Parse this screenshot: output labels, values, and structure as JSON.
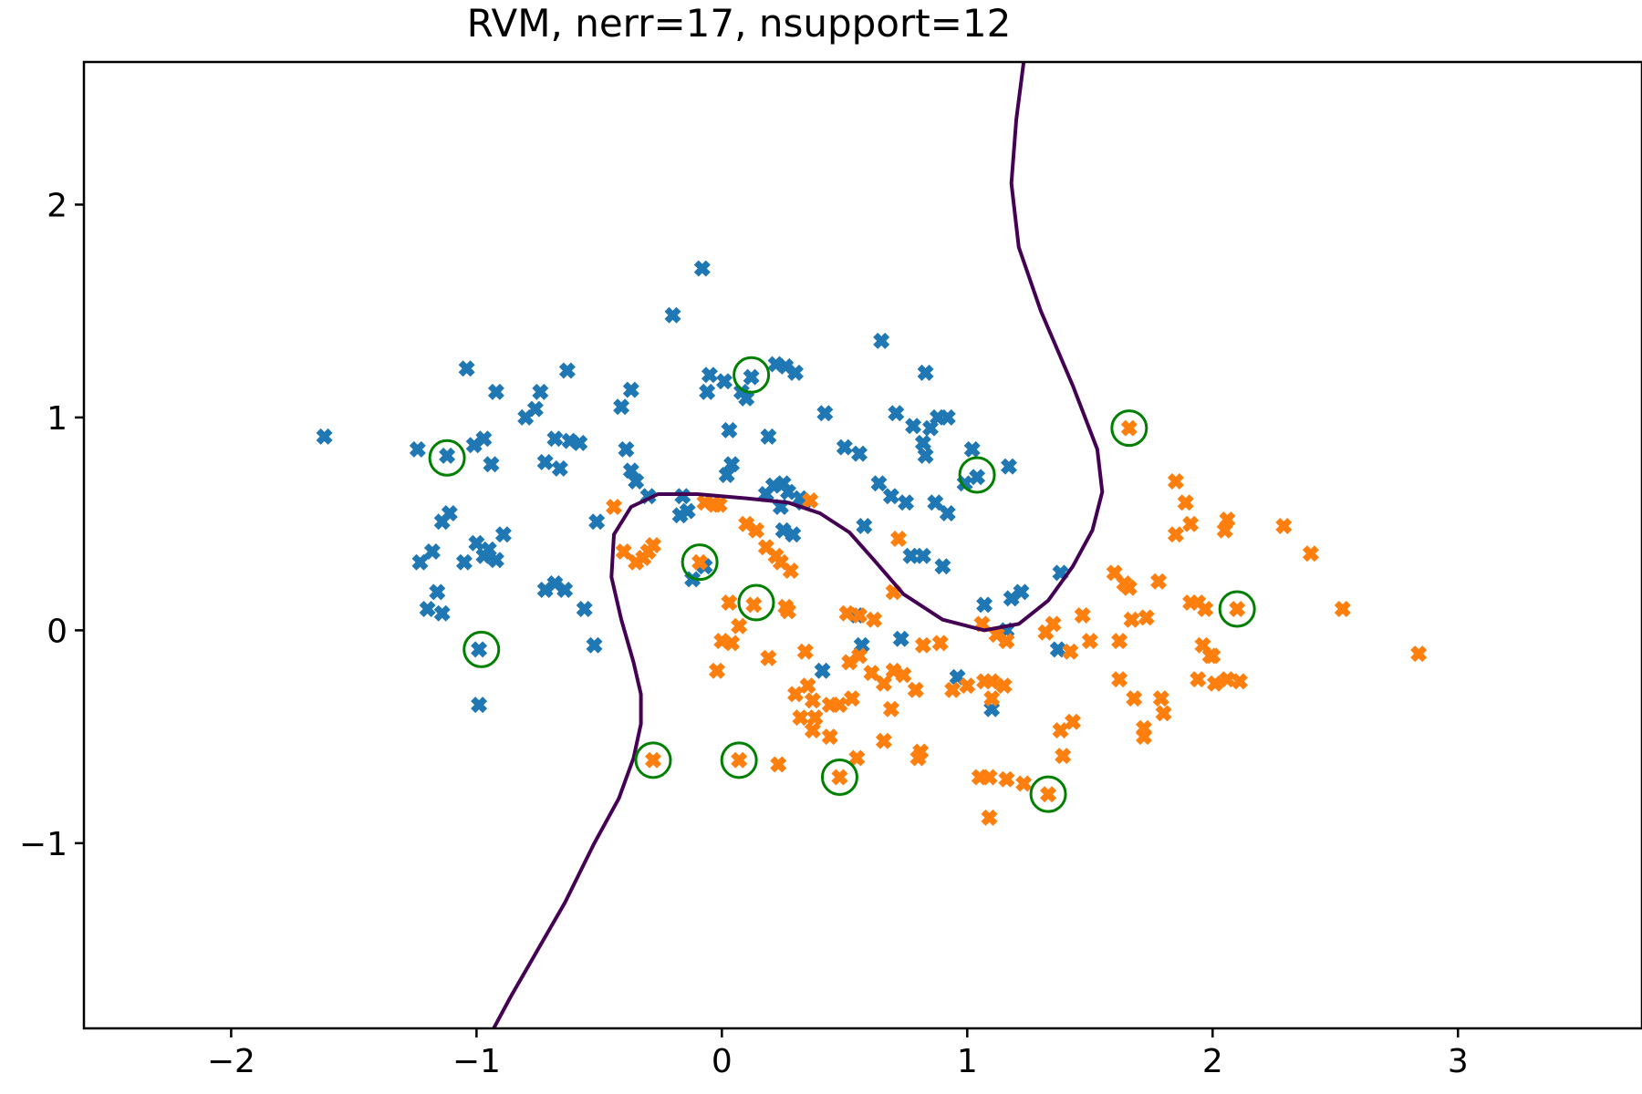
{
  "chart_data": {
    "type": "scatter",
    "title": "RVM, nerr=17, nsupport=12",
    "xlabel": "",
    "ylabel": "",
    "xlim": [
      -2.6,
      3.75
    ],
    "ylim": [
      -1.87,
      2.67
    ],
    "xticks": [
      -2,
      -1,
      0,
      1,
      2,
      3
    ],
    "yticks": [
      -1,
      0,
      1,
      2
    ],
    "xtick_labels": [
      "−2",
      "−1",
      "0",
      "1",
      "2",
      "3"
    ],
    "ytick_labels": [
      "−1",
      "0",
      "1",
      "2"
    ],
    "grid": false,
    "legend": "none",
    "marker": "X",
    "colors": {
      "class0": "#1f77b4",
      "class1": "#ff7f0e",
      "support": "#008000",
      "boundary": "#440154"
    },
    "series": [
      {
        "values": [
          [
            -1.62,
            0.91
          ],
          [
            -1.24,
            0.85
          ],
          [
            -1.12,
            0.82
          ],
          [
            -1.04,
            1.23
          ],
          [
            -0.92,
            1.12
          ],
          [
            -0.8,
            1.0
          ],
          [
            -0.74,
            1.12
          ],
          [
            -0.76,
            1.04
          ],
          [
            -0.68,
            0.9
          ],
          [
            -0.72,
            0.79
          ],
          [
            -0.66,
            0.76
          ],
          [
            -0.62,
            0.89
          ],
          [
            -0.63,
            1.22
          ],
          [
            -0.58,
            0.88
          ],
          [
            -0.41,
            1.05
          ],
          [
            -0.37,
            1.13
          ],
          [
            -0.39,
            0.85
          ],
          [
            -0.37,
            0.75
          ],
          [
            -0.35,
            0.7
          ],
          [
            -0.3,
            0.63
          ],
          [
            -0.2,
            1.48
          ],
          [
            -0.08,
            1.7
          ],
          [
            -0.05,
            1.2
          ],
          [
            -0.06,
            1.12
          ],
          [
            0.01,
            1.17
          ],
          [
            0.03,
            0.94
          ],
          [
            0.04,
            0.78
          ],
          [
            0.02,
            0.73
          ],
          [
            0.08,
            1.12
          ],
          [
            0.1,
            1.09
          ],
          [
            0.12,
            1.19
          ],
          [
            0.19,
            0.91
          ],
          [
            0.22,
            1.25
          ],
          [
            0.26,
            1.24
          ],
          [
            0.3,
            1.21
          ],
          [
            0.21,
            0.68
          ],
          [
            0.25,
            0.69
          ],
          [
            0.27,
            0.65
          ],
          [
            0.18,
            0.64
          ],
          [
            0.24,
            0.58
          ],
          [
            0.32,
            0.62
          ],
          [
            0.25,
            0.47
          ],
          [
            0.29,
            0.45
          ],
          [
            0.42,
            1.02
          ],
          [
            0.5,
            0.86
          ],
          [
            0.56,
            0.83
          ],
          [
            0.65,
            1.36
          ],
          [
            0.71,
            1.02
          ],
          [
            0.78,
            0.96
          ],
          [
            0.82,
            0.88
          ],
          [
            0.83,
            0.82
          ],
          [
            0.85,
            0.95
          ],
          [
            0.88,
            1.0
          ],
          [
            0.92,
            1.0
          ],
          [
            0.83,
            1.21
          ],
          [
            0.64,
            0.69
          ],
          [
            0.69,
            0.63
          ],
          [
            0.75,
            0.6
          ],
          [
            0.87,
            0.6
          ],
          [
            0.92,
            0.55
          ],
          [
            1.02,
            0.85
          ],
          [
            0.99,
            0.69
          ],
          [
            1.04,
            0.72
          ],
          [
            1.17,
            0.77
          ],
          [
            0.77,
            0.35
          ],
          [
            0.82,
            0.35
          ],
          [
            0.9,
            0.3
          ],
          [
            0.58,
            0.49
          ],
          [
            1.07,
            0.12
          ],
          [
            1.18,
            0.15
          ],
          [
            1.22,
            0.18
          ],
          [
            1.38,
            0.27
          ],
          [
            1.37,
            -0.09
          ],
          [
            1.16,
            -0.0
          ],
          [
            -1.23,
            0.32
          ],
          [
            -1.18,
            0.37
          ],
          [
            -1.2,
            0.1
          ],
          [
            -1.16,
            0.18
          ],
          [
            -1.14,
            0.08
          ],
          [
            -1.14,
            0.51
          ],
          [
            -1.11,
            0.55
          ],
          [
            -1.05,
            0.32
          ],
          [
            -1.0,
            0.41
          ],
          [
            -0.97,
            0.35
          ],
          [
            -0.95,
            0.38
          ],
          [
            -0.92,
            0.33
          ],
          [
            -0.89,
            0.45
          ],
          [
            -0.97,
            0.9
          ],
          [
            -0.94,
            0.78
          ],
          [
            -1.01,
            0.87
          ],
          [
            -0.72,
            0.19
          ],
          [
            -0.68,
            0.22
          ],
          [
            -0.64,
            0.19
          ],
          [
            -0.56,
            0.1
          ],
          [
            -0.51,
            0.51
          ],
          [
            -0.52,
            -0.07
          ],
          [
            -0.99,
            -0.09
          ],
          [
            -0.99,
            -0.35
          ],
          [
            -0.17,
            0.54
          ],
          [
            -0.16,
            0.63
          ],
          [
            -0.14,
            0.56
          ],
          [
            -0.12,
            0.24
          ],
          [
            -0.07,
            0.3
          ],
          [
            0.55,
            0.07
          ],
          [
            0.57,
            -0.07
          ],
          [
            0.73,
            -0.04
          ],
          [
            0.41,
            -0.19
          ],
          [
            0.96,
            -0.22
          ],
          [
            1.1,
            -0.37
          ],
          [
            0.33,
            0.6
          ]
        ]
      },
      {
        "values": [
          [
            -0.44,
            0.58
          ],
          [
            -0.4,
            0.37
          ],
          [
            -0.35,
            0.32
          ],
          [
            -0.32,
            0.34
          ],
          [
            -0.28,
            0.4
          ],
          [
            -0.3,
            0.37
          ],
          [
            -0.07,
            0.6
          ],
          [
            -0.03,
            0.59
          ],
          [
            -0.01,
            0.59
          ],
          [
            -0.09,
            0.32
          ],
          [
            0.1,
            0.5
          ],
          [
            0.14,
            0.47
          ],
          [
            0.18,
            0.39
          ],
          [
            0.22,
            0.35
          ],
          [
            0.24,
            0.32
          ],
          [
            0.28,
            0.28
          ],
          [
            0.36,
            0.61
          ],
          [
            0.72,
            0.43
          ],
          [
            0.7,
            0.18
          ],
          [
            0.03,
            0.13
          ],
          [
            -0.0,
            -0.05
          ],
          [
            0.07,
            0.02
          ],
          [
            0.13,
            0.12
          ],
          [
            0.26,
            0.11
          ],
          [
            -0.02,
            -0.19
          ],
          [
            0.04,
            -0.06
          ],
          [
            0.19,
            -0.13
          ],
          [
            0.34,
            -0.1
          ],
          [
            0.35,
            -0.26
          ],
          [
            0.37,
            -0.33
          ],
          [
            0.3,
            -0.3
          ],
          [
            0.32,
            -0.41
          ],
          [
            0.44,
            -0.35
          ],
          [
            0.48,
            -0.35
          ],
          [
            0.53,
            -0.32
          ],
          [
            0.52,
            -0.15
          ],
          [
            0.56,
            -0.12
          ],
          [
            0.51,
            0.08
          ],
          [
            0.56,
            0.07
          ],
          [
            0.62,
            0.05
          ],
          [
            0.61,
            -0.2
          ],
          [
            0.66,
            -0.25
          ],
          [
            0.7,
            -0.19
          ],
          [
            0.74,
            -0.21
          ],
          [
            0.79,
            -0.28
          ],
          [
            0.82,
            -0.07
          ],
          [
            0.89,
            -0.06
          ],
          [
            0.94,
            -0.28
          ],
          [
            0.69,
            -0.37
          ],
          [
            0.66,
            -0.52
          ],
          [
            0.55,
            -0.6
          ],
          [
            0.48,
            -0.69
          ],
          [
            0.44,
            -0.5
          ],
          [
            0.38,
            -0.41
          ],
          [
            0.81,
            -0.57
          ],
          [
            0.8,
            -0.6
          ],
          [
            0.23,
            -0.63
          ],
          [
            0.07,
            -0.61
          ],
          [
            -0.28,
            -0.61
          ],
          [
            0.37,
            -0.47
          ],
          [
            1.06,
            0.03
          ],
          [
            1.12,
            -0.02
          ],
          [
            1.16,
            -0.05
          ],
          [
            1.32,
            -0.01
          ],
          [
            1.35,
            0.03
          ],
          [
            1.42,
            -0.1
          ],
          [
            1.47,
            0.07
          ],
          [
            1.5,
            -0.05
          ],
          [
            1.6,
            0.27
          ],
          [
            1.64,
            0.22
          ],
          [
            1.66,
            0.2
          ],
          [
            1.67,
            0.05
          ],
          [
            1.73,
            0.06
          ],
          [
            1.78,
            0.23
          ],
          [
            1.66,
            0.95
          ],
          [
            1.85,
            0.7
          ],
          [
            1.89,
            0.6
          ],
          [
            1.91,
            0.5
          ],
          [
            1.85,
            0.45
          ],
          [
            1.91,
            0.13
          ],
          [
            1.94,
            0.13
          ],
          [
            1.97,
            0.1
          ],
          [
            2.05,
            0.47
          ],
          [
            2.06,
            0.52
          ],
          [
            2.1,
            0.1
          ],
          [
            2.29,
            0.49
          ],
          [
            2.4,
            0.36
          ],
          [
            2.53,
            0.1
          ],
          [
            2.84,
            -0.11
          ],
          [
            1.62,
            -0.05
          ],
          [
            1.62,
            -0.23
          ],
          [
            1.68,
            -0.32
          ],
          [
            1.72,
            -0.46
          ],
          [
            1.72,
            -0.5
          ],
          [
            1.79,
            -0.32
          ],
          [
            1.8,
            -0.39
          ],
          [
            1.96,
            -0.07
          ],
          [
            1.99,
            -0.12
          ],
          [
            2.0,
            -0.12
          ],
          [
            1.94,
            -0.23
          ],
          [
            2.01,
            -0.25
          ],
          [
            2.06,
            -0.23
          ],
          [
            2.11,
            -0.24
          ],
          [
            1.0,
            -0.26
          ],
          [
            1.07,
            -0.24
          ],
          [
            1.1,
            -0.24
          ],
          [
            1.15,
            -0.26
          ],
          [
            1.1,
            -0.32
          ],
          [
            1.23,
            -0.72
          ],
          [
            1.16,
            -0.7
          ],
          [
            1.09,
            -0.69
          ],
          [
            1.05,
            -0.69
          ],
          [
            1.09,
            -0.88
          ],
          [
            1.33,
            -0.77
          ],
          [
            1.38,
            -0.47
          ],
          [
            1.43,
            -0.43
          ],
          [
            1.39,
            -0.59
          ],
          [
            0.27,
            0.09
          ]
        ]
      }
    ],
    "support_vectors": [
      [
        -1.12,
        0.81
      ],
      [
        0.12,
        1.2
      ],
      [
        1.04,
        0.73
      ],
      [
        -0.09,
        0.32
      ],
      [
        0.14,
        0.13
      ],
      [
        -0.98,
        -0.09
      ],
      [
        -0.28,
        -0.61
      ],
      [
        0.07,
        -0.61
      ],
      [
        0.48,
        -0.69
      ],
      [
        1.33,
        -0.77
      ],
      [
        1.66,
        0.95
      ],
      [
        2.1,
        0.1
      ]
    ],
    "decision_boundary": [
      [
        -0.93,
        -1.87
      ],
      [
        -0.86,
        -1.72
      ],
      [
        -0.75,
        -1.5
      ],
      [
        -0.64,
        -1.28
      ],
      [
        -0.52,
        -1.0
      ],
      [
        -0.42,
        -0.79
      ],
      [
        -0.36,
        -0.6
      ],
      [
        -0.33,
        -0.44
      ],
      [
        -0.33,
        -0.3
      ],
      [
        -0.36,
        -0.15
      ],
      [
        -0.41,
        0.05
      ],
      [
        -0.45,
        0.25
      ],
      [
        -0.44,
        0.45
      ],
      [
        -0.37,
        0.58
      ],
      [
        -0.26,
        0.64
      ],
      [
        -0.1,
        0.64
      ],
      [
        0.1,
        0.62
      ],
      [
        0.27,
        0.6
      ],
      [
        0.4,
        0.55
      ],
      [
        0.52,
        0.46
      ],
      [
        0.62,
        0.33
      ],
      [
        0.74,
        0.17
      ],
      [
        0.9,
        0.05
      ],
      [
        1.07,
        -0.0
      ],
      [
        1.21,
        0.03
      ],
      [
        1.33,
        0.14
      ],
      [
        1.43,
        0.3
      ],
      [
        1.51,
        0.47
      ],
      [
        1.55,
        0.65
      ],
      [
        1.53,
        0.85
      ],
      [
        1.43,
        1.15
      ],
      [
        1.3,
        1.5
      ],
      [
        1.21,
        1.8
      ],
      [
        1.18,
        2.1
      ],
      [
        1.2,
        2.4
      ],
      [
        1.23,
        2.67
      ]
    ]
  }
}
